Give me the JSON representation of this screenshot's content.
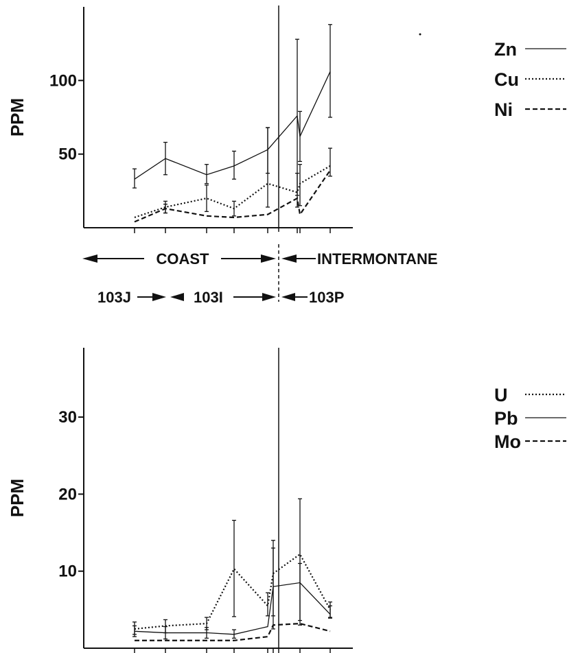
{
  "chart_data": [
    {
      "type": "line",
      "ylabel": "PPM",
      "yticks": [
        50,
        100
      ],
      "ylim": [
        0,
        150
      ],
      "legend_position": "top-right",
      "series": [
        {
          "name": "Zn",
          "style": "solid",
          "x": [
            1,
            2,
            3,
            4,
            5,
            6,
            7,
            8
          ],
          "values": [
            33,
            47,
            36,
            42,
            53,
            76,
            62,
            106
          ],
          "err_low": [
            27,
            36,
            30,
            33,
            37,
            22,
            45,
            75
          ],
          "err_high": [
            40,
            58,
            43,
            52,
            68,
            128,
            79,
            138
          ]
        },
        {
          "name": "Cu",
          "style": "dotted",
          "x": [
            1,
            2,
            3,
            4,
            5,
            6,
            7,
            8
          ],
          "values": [
            7,
            14,
            20,
            13,
            30,
            24,
            30,
            42
          ],
          "err_low": [
            null,
            10,
            11,
            8,
            14,
            14,
            15,
            35
          ],
          "err_high": [
            null,
            18,
            29,
            18,
            68,
            37,
            43,
            54
          ]
        },
        {
          "name": "Ni",
          "style": "dashed",
          "x": [
            1,
            2,
            3,
            4,
            5,
            6,
            7,
            8
          ],
          "values": [
            4,
            13,
            8,
            7,
            9,
            20,
            9,
            39
          ],
          "err_low": [
            null,
            10,
            null,
            null,
            null,
            null,
            null,
            null
          ],
          "err_high": [
            null,
            16,
            null,
            null,
            null,
            null,
            null,
            null
          ]
        }
      ],
      "regions": {
        "row1": {
          "left": "COAST",
          "right": "INTERMONTANE"
        },
        "row2": [
          "103J",
          "103I",
          "103P"
        ]
      }
    },
    {
      "type": "line",
      "ylabel": "PPM",
      "yticks": [
        10,
        20,
        30
      ],
      "ylim": [
        0,
        39
      ],
      "legend_position": "top-right",
      "series": [
        {
          "name": "U",
          "style": "dotted",
          "x": [
            1,
            2,
            3,
            4,
            5,
            6,
            7,
            8
          ],
          "values": [
            2.5,
            2.9,
            3.2,
            10.3,
            5.5,
            9.7,
            12.2,
            5.0
          ],
          "err_low": [
            1.8,
            2.0,
            2.4,
            4.1,
            4.2,
            4.2,
            3.6,
            4.0
          ],
          "err_high": [
            3.4,
            3.7,
            4.0,
            16.6,
            7.2,
            14.0,
            19.4,
            6.0
          ]
        },
        {
          "name": "Pb",
          "style": "solid",
          "x": [
            1,
            2,
            3,
            4,
            5,
            6,
            7,
            8
          ],
          "values": [
            2.2,
            2.0,
            2.0,
            1.8,
            2.8,
            8.0,
            8.5,
            4.4
          ],
          "err_low": [
            1.5,
            1.2,
            1.3,
            1.3,
            null,
            2.5,
            3.0,
            3.9
          ],
          "err_high": [
            2.9,
            2.8,
            2.7,
            2.4,
            null,
            13.0,
            11.0,
            5.5
          ]
        },
        {
          "name": "Mo",
          "style": "dashed",
          "x": [
            1,
            2,
            3,
            4,
            5,
            6,
            7,
            8
          ],
          "values": [
            1.0,
            1.0,
            1.0,
            1.0,
            1.5,
            3.0,
            3.2,
            2.2
          ],
          "err_low": [
            null,
            null,
            null,
            null,
            null,
            null,
            null,
            null
          ],
          "err_high": [
            null,
            null,
            null,
            null,
            null,
            null,
            null,
            null
          ]
        }
      ]
    }
  ]
}
